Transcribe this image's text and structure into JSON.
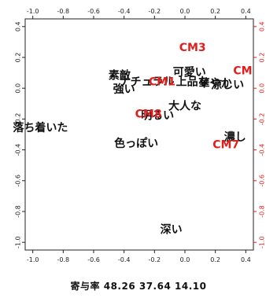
{
  "chart_data": {
    "type": "scatter",
    "title": "",
    "xlabel": "",
    "ylabel": "",
    "xlim": [
      -1.05,
      0.45
    ],
    "ylim": [
      -1.05,
      0.45
    ],
    "grid": false,
    "ticks": {
      "bottom": [
        "-1.0",
        "-0.8",
        "-0.6",
        "-0.4",
        "-0.2",
        "0.0",
        "0.2",
        "0.4"
      ],
      "top": [
        "-1.0",
        "-0.8",
        "-0.6",
        "-0.4",
        "-0.2",
        "0.0",
        "0.2",
        "0.4"
      ],
      "left": [
        "0.4",
        "0.2",
        "0.0",
        "-0.2",
        "-0.4",
        "-0.6",
        "-0.8",
        "-1.0"
      ],
      "right": [
        "0.4",
        "0.2",
        "0.0",
        "-0.2",
        "-0.4",
        "-0.6",
        "-0.8",
        "-1.0"
      ],
      "tick_values": [
        -1.0,
        -0.8,
        -0.6,
        -0.4,
        -0.2,
        0.0,
        0.2,
        0.4
      ]
    },
    "series": [
      {
        "color": "#111111",
        "points": [
          {
            "label": "素敵",
            "x": -0.43,
            "y": 0.08
          },
          {
            "label": "ナチュラル",
            "x": -0.25,
            "y": 0.04
          },
          {
            "label": "強い",
            "x": -0.4,
            "y": -0.01
          },
          {
            "label": "可愛い",
            "x": 0.03,
            "y": 0.1
          },
          {
            "label": "上品な",
            "x": 0.05,
            "y": 0.04
          },
          {
            "label": "華やか",
            "x": 0.2,
            "y": 0.03
          },
          {
            "label": "涼しい",
            "x": 0.28,
            "y": 0.02
          },
          {
            "label": "大人な",
            "x": 0.0,
            "y": -0.12
          },
          {
            "label": "明るい",
            "x": -0.18,
            "y": -0.18
          },
          {
            "label": "落ち着いた",
            "x": -0.95,
            "y": -0.26
          },
          {
            "label": "色っぽい",
            "x": -0.32,
            "y": -0.36
          },
          {
            "label": "濃し",
            "x": 0.33,
            "y": -0.32
          },
          {
            "label": "深い",
            "x": -0.09,
            "y": -0.92
          }
        ]
      },
      {
        "color": "#e0201c",
        "points": [
          {
            "label": "CM3",
            "x": 0.05,
            "y": 0.26
          },
          {
            "label": "CM1",
            "x": -0.15,
            "y": 0.04
          },
          {
            "label": "CM",
            "x": 0.38,
            "y": 0.11
          },
          {
            "label": "CM8",
            "x": -0.24,
            "y": -0.17
          },
          {
            "label": "CM7",
            "x": 0.27,
            "y": -0.37
          }
        ]
      }
    ],
    "footer": "寄与率 48.26 37.64 14.10"
  }
}
